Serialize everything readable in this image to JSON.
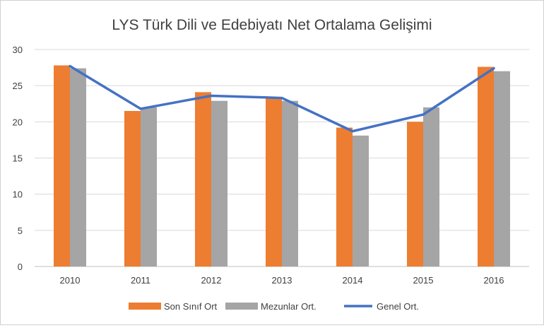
{
  "chart_data": {
    "type": "bar",
    "title": "LYS Türk Dili ve Edebiyatı Net Ortalama Gelişimi",
    "categories": [
      "2010",
      "2011",
      "2012",
      "2013",
      "2014",
      "2015",
      "2016"
    ],
    "series": [
      {
        "name": "Son Sınıf Ort",
        "type": "bar",
        "color": "#ED7D31",
        "values": [
          27.8,
          21.5,
          24.1,
          23.4,
          19.2,
          20.0,
          27.6
        ]
      },
      {
        "name": "Mezunlar Ort.",
        "type": "bar",
        "color": "#A5A5A5",
        "values": [
          27.4,
          22.0,
          22.9,
          22.9,
          18.1,
          22.0,
          27.0
        ]
      },
      {
        "name": "Genel Ort.",
        "type": "line",
        "color": "#4472C4",
        "values": [
          27.7,
          21.8,
          23.6,
          23.3,
          18.7,
          21.0,
          27.4
        ]
      }
    ],
    "yticks": [
      "0",
      "5",
      "10",
      "15",
      "20",
      "25",
      "30"
    ],
    "ylim": [
      0,
      30
    ],
    "grid": true,
    "legend": "bottom"
  }
}
